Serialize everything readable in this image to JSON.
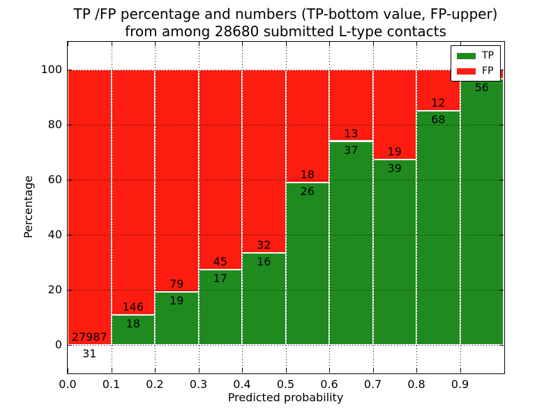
{
  "chart_data": {
    "type": "bar",
    "subtype": "stacked-percentage",
    "title_line1": "TP /FP percentage and numbers (TP-bottom value, FP-upper)",
    "title_line2": "from among 28680 submitted L-type contacts",
    "total_contacts": 28680,
    "xlabel": "Predicted probability",
    "ylabel": "Percentage",
    "xlim": [
      0.0,
      1.0
    ],
    "ylim": [
      -10,
      110
    ],
    "x_tick_values": [
      0.0,
      0.1,
      0.2,
      0.3,
      0.4,
      0.5,
      0.6,
      0.7,
      0.8,
      0.9
    ],
    "x_tick_labels": [
      "0.0",
      "0.1",
      "0.2",
      "0.3",
      "0.4",
      "0.5",
      "0.6",
      "0.7",
      "0.8",
      "0.9"
    ],
    "y_tick_values": [
      0,
      20,
      40,
      60,
      80,
      100
    ],
    "y_tick_labels": [
      "0",
      "20",
      "40",
      "60",
      "80",
      "100"
    ],
    "grid": true,
    "legend_position": "upper-right",
    "colors": {
      "tp": "#1f8b1f",
      "fp": "#fc1c10",
      "bar_edge": "#ffffff",
      "grid": "#000000",
      "text": "#000000",
      "background": "#ffffff"
    },
    "legend": [
      {
        "label": "TP",
        "color_key": "tp"
      },
      {
        "label": "FP",
        "color_key": "fp"
      }
    ],
    "bars": [
      {
        "x0": 0.0,
        "x1": 0.1,
        "tp_count": 31,
        "fp_count": 27987,
        "tp_pct": 0.11
      },
      {
        "x0": 0.1,
        "x1": 0.2,
        "tp_count": 18,
        "fp_count": 146,
        "tp_pct": 10.98
      },
      {
        "x0": 0.2,
        "x1": 0.3,
        "tp_count": 19,
        "fp_count": 79,
        "tp_pct": 19.39
      },
      {
        "x0": 0.3,
        "x1": 0.4,
        "tp_count": 17,
        "fp_count": 45,
        "tp_pct": 27.42
      },
      {
        "x0": 0.4,
        "x1": 0.5,
        "tp_count": 16,
        "fp_count": 32,
        "tp_pct": 33.33
      },
      {
        "x0": 0.5,
        "x1": 0.6,
        "tp_count": 26,
        "fp_count": 18,
        "tp_pct": 59.09
      },
      {
        "x0": 0.6,
        "x1": 0.7,
        "tp_count": 37,
        "fp_count": 13,
        "tp_pct": 74.0
      },
      {
        "x0": 0.7,
        "x1": 0.8,
        "tp_count": 39,
        "fp_count": 19,
        "tp_pct": 67.24
      },
      {
        "x0": 0.8,
        "x1": 0.9,
        "tp_count": 68,
        "fp_count": 12,
        "tp_pct": 85.0
      },
      {
        "x0": 0.9,
        "x1": 1.0,
        "tp_count": 56,
        "fp_count": null,
        "tp_pct": 96.55
      }
    ]
  }
}
